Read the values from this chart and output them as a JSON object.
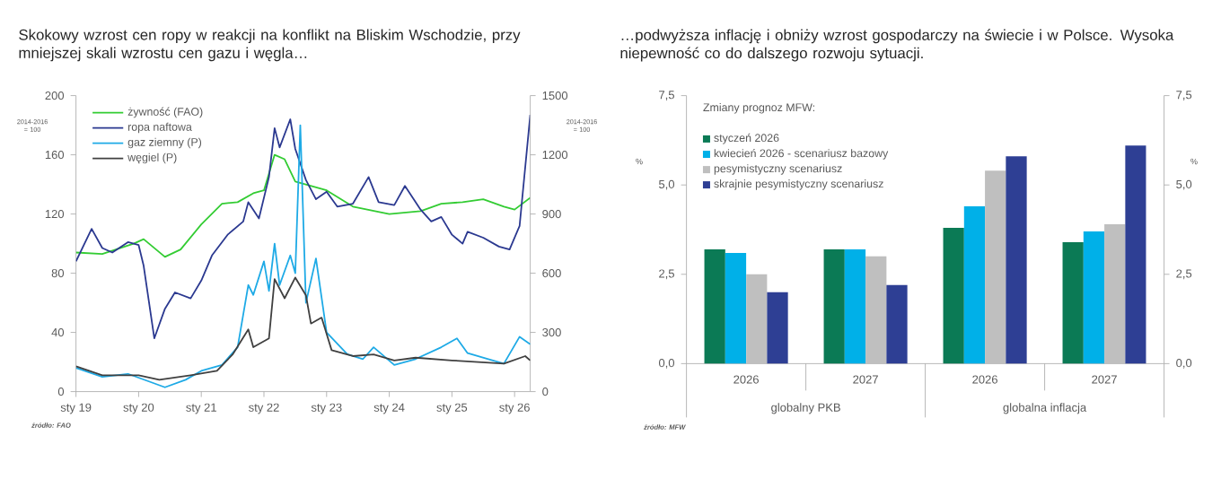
{
  "chart_data": [
    {
      "type": "line",
      "title": "Skokowy wzrost cen ropy w reakcji na konflikt na Bliskim Wschodzie, przy mniejszej skali wzrostu cen gazu i węgla…",
      "ylabel": "2014-2016 = 100",
      "y2label": "2014-2016 = 100",
      "annotations": [
        "źródło: FAO"
      ],
      "xlim": [
        "2019-01",
        "2026-04"
      ],
      "xticks": [
        {
          "value": "2019-01",
          "label": "sty 19"
        },
        {
          "value": "2020-01",
          "label": "sty 20"
        },
        {
          "value": "2021-01",
          "label": "sty 21"
        },
        {
          "value": "2022-01",
          "label": "sty 22"
        },
        {
          "value": "2023-01",
          "label": "sty 23"
        },
        {
          "value": "2024-01",
          "label": "sty 24"
        },
        {
          "value": "2025-01",
          "label": "sty 25"
        },
        {
          "value": "2026-01",
          "label": "sty 26"
        }
      ],
      "ylim": [
        0,
        200
      ],
      "yticks": [
        0,
        40,
        80,
        120,
        160,
        200
      ],
      "y2lim": [
        0,
        1500
      ],
      "y2ticks": [
        0,
        300,
        600,
        900,
        1200,
        1500
      ],
      "legend": "top left",
      "series": [
        {
          "name": "żywność (FAO)",
          "color": "#33cc33",
          "x": [
            "2019-01",
            "2019-06",
            "2019-12",
            "2020-02",
            "2020-06",
            "2020-09",
            "2021-01",
            "2021-05",
            "2021-08",
            "2021-11",
            "2022-01",
            "2022-03",
            "2022-05",
            "2022-07",
            "2022-10",
            "2023-01",
            "2023-06",
            "2024-01",
            "2024-07",
            "2024-11",
            "2025-03",
            "2025-07",
            "2025-11",
            "2026-01",
            "2026-04"
          ],
          "values": [
            94,
            93,
            100,
            103,
            91,
            96,
            113,
            127,
            128,
            134,
            136,
            160,
            157,
            142,
            139,
            136,
            125,
            120,
            122,
            127,
            128,
            130,
            125,
            123,
            131
          ]
        },
        {
          "name": "ropa naftowa",
          "color": "#2b3990",
          "x": [
            "2019-01",
            "2019-04",
            "2019-06",
            "2019-08",
            "2019-11",
            "2020-01",
            "2020-02",
            "2020-04",
            "2020-06",
            "2020-08",
            "2020-11",
            "2021-01",
            "2021-03",
            "2021-06",
            "2021-09",
            "2021-10",
            "2021-12",
            "2022-02",
            "2022-03",
            "2022-04",
            "2022-06",
            "2022-07",
            "2022-09",
            "2022-11",
            "2023-01",
            "2023-03",
            "2023-06",
            "2023-09",
            "2023-11",
            "2024-02",
            "2024-04",
            "2024-07",
            "2024-09",
            "2024-11",
            "2025-01",
            "2025-03",
            "2025-04",
            "2025-07",
            "2025-10",
            "2025-12",
            "2026-02",
            "2026-04"
          ],
          "values": [
            88,
            110,
            97,
            94,
            101,
            99,
            85,
            36,
            56,
            67,
            63,
            75,
            92,
            106,
            115,
            128,
            117,
            145,
            178,
            165,
            184,
            164,
            143,
            130,
            135,
            125,
            127,
            145,
            128,
            126,
            139,
            123,
            115,
            118,
            106,
            100,
            108,
            104,
            98,
            96,
            112,
            187
          ]
        },
        {
          "name": "gaz ziemny (P)",
          "color": "#1eaae6",
          "axis": "y2",
          "x": [
            "2019-01",
            "2019-06",
            "2019-11",
            "2020-06",
            "2020-10",
            "2021-01",
            "2021-05",
            "2021-08",
            "2021-10",
            "2021-11",
            "2022-01",
            "2022-02",
            "2022-03",
            "2022-04",
            "2022-06",
            "2022-07",
            "2022-08",
            "2022-09",
            "2022-11",
            "2023-01",
            "2023-05",
            "2023-08",
            "2023-10",
            "2024-02",
            "2024-06",
            "2024-11",
            "2025-02",
            "2025-04",
            "2025-08",
            "2025-11",
            "2026-02",
            "2026-04"
          ],
          "values": [
            120,
            75,
            90,
            22,
            60,
            105,
            135,
            225,
            540,
            490,
            660,
            510,
            750,
            540,
            690,
            600,
            1350,
            450,
            675,
            300,
            190,
            165,
            225,
            135,
            165,
            225,
            270,
            195,
            165,
            142,
            278,
            240
          ]
        },
        {
          "name": "węgiel (P)",
          "color": "#404040",
          "axis": "y2",
          "x": [
            "2019-01",
            "2019-06",
            "2020-01",
            "2020-05",
            "2020-11",
            "2021-04",
            "2021-07",
            "2021-10",
            "2021-11",
            "2022-02",
            "2022-03",
            "2022-05",
            "2022-07",
            "2022-09",
            "2022-10",
            "2022-12",
            "2023-02",
            "2023-06",
            "2023-10",
            "2024-02",
            "2024-06",
            "2025-01",
            "2025-06",
            "2025-11",
            "2026-03",
            "2026-04"
          ],
          "values": [
            128,
            83,
            83,
            60,
            83,
            105,
            188,
            315,
            225,
            270,
            570,
            473,
            578,
            488,
            345,
            375,
            210,
            180,
            188,
            158,
            172,
            158,
            150,
            142,
            180,
            158
          ]
        }
      ]
    },
    {
      "type": "bar",
      "title": "…podwyższa inflację i obniży wzrost gospodarczy na świecie i w Polsce. Wysoka niepewność co do dalszego rozwoju sytuacji.",
      "ylabel": "%",
      "y2label": "%",
      "legend_title": "Zmiany prognoz MFW:",
      "legend": "top left",
      "annotations": [
        "globalny PKB",
        "globalna inflacja",
        "źródło: MFW"
      ],
      "categories": [
        "2026",
        "2027",
        "2026",
        "2027"
      ],
      "ylim": [
        0,
        7.5
      ],
      "yticks": [
        {
          "value": 0,
          "label": "0,0"
        },
        {
          "value": 2.5,
          "label": "2,5"
        },
        {
          "value": 5,
          "label": "5,0"
        },
        {
          "value": 7.5,
          "label": "7,5"
        }
      ],
      "y2lim": [
        0,
        7.5
      ],
      "y2ticks": [
        {
          "value": 0,
          "label": "0,0"
        },
        {
          "value": 2.5,
          "label": "2,5"
        },
        {
          "value": 5,
          "label": "5,0"
        },
        {
          "value": 7.5,
          "label": "7,5"
        }
      ],
      "series": [
        {
          "name": "styczeń 2026",
          "color": "#0b7a55",
          "values": [
            3.2,
            3.2,
            3.8,
            3.4
          ]
        },
        {
          "name": "kwiecień 2026 - scenariusz bazowy",
          "color": "#00b0e8",
          "values": [
            3.1,
            3.2,
            4.4,
            3.7
          ]
        },
        {
          "name": "pesymistyczny scenariusz",
          "color": "#bfbfbf",
          "values": [
            2.5,
            3.0,
            5.4,
            3.9
          ]
        },
        {
          "name": "skrajnie pesymistyczny scenariusz",
          "color": "#2e3f94",
          "values": [
            2.0,
            2.2,
            5.8,
            6.1
          ]
        }
      ]
    }
  ]
}
